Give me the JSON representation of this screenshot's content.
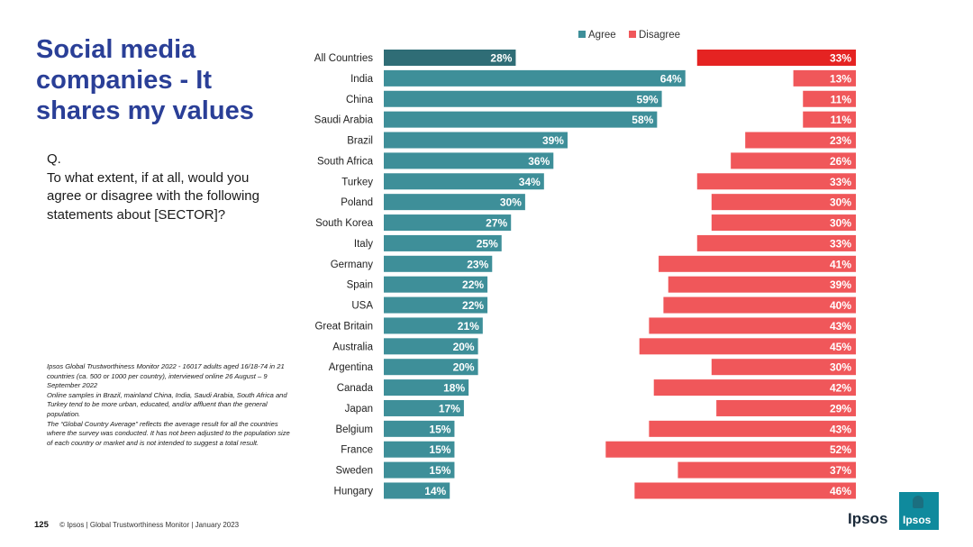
{
  "slide": {
    "title": "Social media companies - It shares my values",
    "question_prefix": "Q.",
    "question": "To what extent, if at all, would you agree or disagree with the following statements about [SECTOR]?",
    "methodology": [
      "Ipsos Global Trustworthiness Monitor 2022 - 16017 adults aged 16/18-74 in 21 countries (ca. 500 or 1000 per country), interviewed online 26 August – 9 September 2022",
      "Online samples in Brazil, mainland China, India, Saudi Arabia, South Africa and Turkey tend to be more urban, educated, and/or affluent than the general population.",
      "The “Global Country Average” reflects the average result for all the countries where the survey was conducted. It has not been adjusted to the population size of each country or market and is not intended to suggest a total result."
    ],
    "page_number": "125",
    "footer": "© Ipsos | Global Trustworthiness Monitor | January 2023",
    "logo_text": "Ipsos",
    "logo_box_text": "Ipsos"
  },
  "chart_data": {
    "type": "bar",
    "orientation": "horizontal",
    "title": "",
    "legend_position": "top-right",
    "categories": [
      "All Countries",
      "India",
      "China",
      "Saudi Arabia",
      "Brazil",
      "South Africa",
      "Turkey",
      "Poland",
      "South Korea",
      "Italy",
      "Germany",
      "Spain",
      "USA",
      "Great Britain",
      "Australia",
      "Argentina",
      "Canada",
      "Japan",
      "Belgium",
      "France",
      "Sweden",
      "Hungary"
    ],
    "series": [
      {
        "name": "Agree",
        "color": "#3e8f99",
        "highlight_color": "#2f6d76",
        "values": [
          28,
          64,
          59,
          58,
          39,
          36,
          34,
          30,
          27,
          25,
          23,
          22,
          22,
          21,
          20,
          20,
          18,
          17,
          15,
          15,
          15,
          14
        ]
      },
      {
        "name": "Disagree",
        "color": "#f0575a",
        "highlight_color": "#e52322",
        "values": [
          33,
          13,
          11,
          11,
          23,
          26,
          33,
          30,
          30,
          33,
          41,
          39,
          40,
          43,
          45,
          30,
          42,
          29,
          43,
          52,
          37,
          46
        ]
      }
    ],
    "value_suffix": "%"
  }
}
